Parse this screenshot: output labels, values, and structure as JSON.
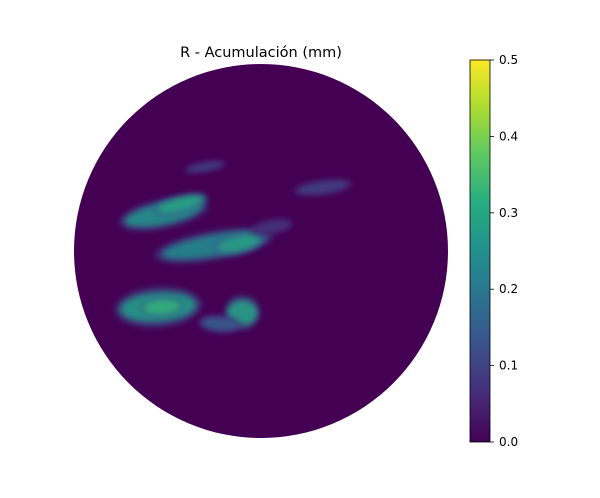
{
  "chart_data": {
    "type": "heatmap",
    "projection": "polar",
    "title": "R - Acumulación (mm)",
    "colormap": "viridis",
    "value_range": [
      0,
      0.5
    ],
    "background_value": 0.0,
    "colorbar": {
      "position": "right",
      "ticks": [
        0.0,
        0.1,
        0.2,
        0.3,
        0.4,
        0.5
      ],
      "tick_labels": [
        "0.0",
        "0.1",
        "0.2",
        "0.3",
        "0.4",
        "0.5"
      ]
    },
    "regions": [
      {
        "cx": -0.52,
        "cy": 0.2,
        "rx": 0.21,
        "ry": 0.055,
        "rotation_deg": -12,
        "value": 0.26
      },
      {
        "cx": -0.43,
        "cy": 0.25,
        "rx": 0.13,
        "ry": 0.035,
        "rotation_deg": -15,
        "value": 0.3
      },
      {
        "cx": -0.25,
        "cy": 0.03,
        "rx": 0.28,
        "ry": 0.055,
        "rotation_deg": -10,
        "value": 0.24
      },
      {
        "cx": -0.12,
        "cy": 0.04,
        "rx": 0.12,
        "ry": 0.04,
        "rotation_deg": -12,
        "value": 0.29
      },
      {
        "cx": -0.55,
        "cy": -0.3,
        "rx": 0.2,
        "ry": 0.075,
        "rotation_deg": -4,
        "value": 0.28
      },
      {
        "cx": -0.53,
        "cy": -0.3,
        "rx": 0.1,
        "ry": 0.04,
        "rotation_deg": -4,
        "value": 0.33
      },
      {
        "cx": -0.1,
        "cy": -0.33,
        "rx": 0.08,
        "ry": 0.065,
        "rotation_deg": 0,
        "value": 0.29
      },
      {
        "cx": -0.22,
        "cy": -0.39,
        "rx": 0.1,
        "ry": 0.035,
        "rotation_deg": 5,
        "value": 0.15
      },
      {
        "cx": -0.3,
        "cy": 0.45,
        "rx": 0.1,
        "ry": 0.02,
        "rotation_deg": -10,
        "value": 0.1
      },
      {
        "cx": 0.33,
        "cy": 0.34,
        "rx": 0.14,
        "ry": 0.03,
        "rotation_deg": -8,
        "value": 0.1
      },
      {
        "cx": 0.06,
        "cy": 0.13,
        "rx": 0.1,
        "ry": 0.03,
        "rotation_deg": -10,
        "value": 0.08
      }
    ]
  }
}
